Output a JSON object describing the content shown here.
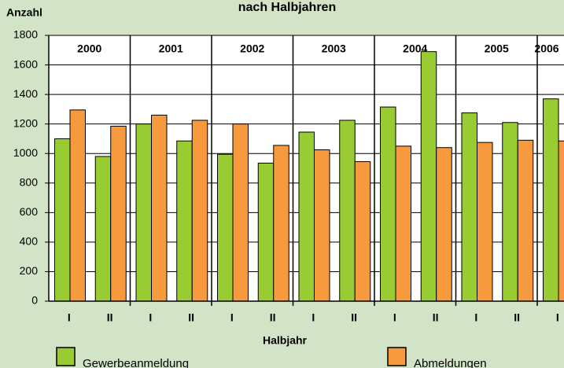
{
  "chart_data": {
    "type": "bar",
    "title": "nach Halbjahren",
    "y_label": "Anzahl",
    "x_label": "Halbjahr",
    "groups": [
      "2000",
      "2001",
      "2002",
      "2003",
      "2004",
      "2005",
      "2006"
    ],
    "categories": [
      "I",
      "II",
      "I",
      "II",
      "I",
      "II",
      "I",
      "II",
      "I",
      "II",
      "I",
      "II",
      "I"
    ],
    "series": [
      {
        "name": "Gewerbeanmeldung",
        "color": "#99cc33",
        "values": [
          1100,
          980,
          1200,
          1085,
          995,
          935,
          1145,
          1225,
          1315,
          1690,
          1275,
          1210,
          1370
        ]
      },
      {
        "name": "Abmeldungen",
        "color": "#f79a3e",
        "values": [
          1295,
          1185,
          1260,
          1225,
          1200,
          1055,
          1025,
          945,
          1050,
          1040,
          1075,
          1090,
          1085
        ]
      }
    ],
    "ylim": [
      0,
      1800
    ],
    "yticks": [
      0,
      200,
      400,
      600,
      800,
      1000,
      1200,
      1400,
      1600,
      1800
    ],
    "grid": true
  }
}
